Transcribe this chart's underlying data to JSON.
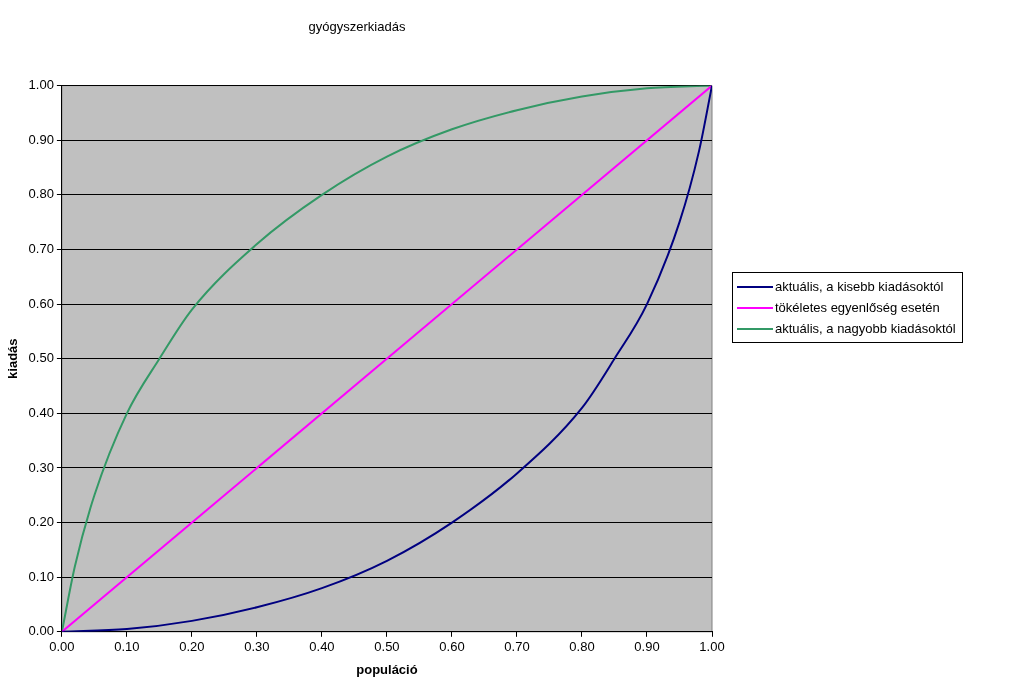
{
  "chart_data": {
    "type": "line",
    "title": "gyógyszerkiadás",
    "xlabel": "populáció",
    "ylabel": "kiadás",
    "xlim": [
      0,
      1
    ],
    "ylim": [
      0,
      1
    ],
    "xticks": [
      {
        "value": 0,
        "label": "0.00"
      },
      {
        "value": 0.1,
        "label": "0.10"
      },
      {
        "value": 0.2,
        "label": "0.20"
      },
      {
        "value": 0.3,
        "label": "0.30"
      },
      {
        "value": 0.4,
        "label": "0.40"
      },
      {
        "value": 0.5,
        "label": "0.50"
      },
      {
        "value": 0.6,
        "label": "0.60"
      },
      {
        "value": 0.7,
        "label": "0.70"
      },
      {
        "value": 0.8,
        "label": "0.80"
      },
      {
        "value": 0.9,
        "label": "0.90"
      },
      {
        "value": 1,
        "label": "1.00"
      }
    ],
    "yticks": [
      {
        "value": 0,
        "label": "0.00"
      },
      {
        "value": 0.1,
        "label": "0.10"
      },
      {
        "value": 0.2,
        "label": "0.20"
      },
      {
        "value": 0.3,
        "label": "0.30"
      },
      {
        "value": 0.4,
        "label": "0.40"
      },
      {
        "value": 0.5,
        "label": "0.50"
      },
      {
        "value": 0.6,
        "label": "0.60"
      },
      {
        "value": 0.7,
        "label": "0.70"
      },
      {
        "value": 0.8,
        "label": "0.80"
      },
      {
        "value": 0.9,
        "label": "0.90"
      },
      {
        "value": 1,
        "label": "1.00"
      }
    ],
    "grid": "y",
    "legend": "right",
    "marker": "none",
    "line_style": "solid",
    "series": [
      {
        "name": "aktuális, a kisebb kiadásoktól",
        "color": "#000080",
        "x": [
          0,
          0.1,
          0.2,
          0.3,
          0.4,
          0.5,
          0.6,
          0.7,
          0.8,
          0.85,
          0.9,
          0.95,
          0.98,
          1
        ],
        "values": [
          0,
          0.005,
          0.02,
          0.045,
          0.08,
          0.13,
          0.2,
          0.29,
          0.41,
          0.5,
          0.6,
          0.75,
          0.88,
          1
        ]
      },
      {
        "name": "tökéletes egyenlőség esetén",
        "color": "#ff00ff",
        "x": [
          0,
          1
        ],
        "values": [
          0,
          1
        ]
      },
      {
        "name": "aktuális, a nagyobb kiadásoktól",
        "color": "#339966",
        "x": [
          0,
          0.02,
          0.05,
          0.1,
          0.15,
          0.2,
          0.3,
          0.4,
          0.5,
          0.6,
          0.7,
          0.8,
          0.9,
          1
        ],
        "values": [
          0,
          0.12,
          0.25,
          0.4,
          0.5,
          0.59,
          0.71,
          0.8,
          0.87,
          0.92,
          0.955,
          0.98,
          0.995,
          1
        ]
      }
    ]
  }
}
